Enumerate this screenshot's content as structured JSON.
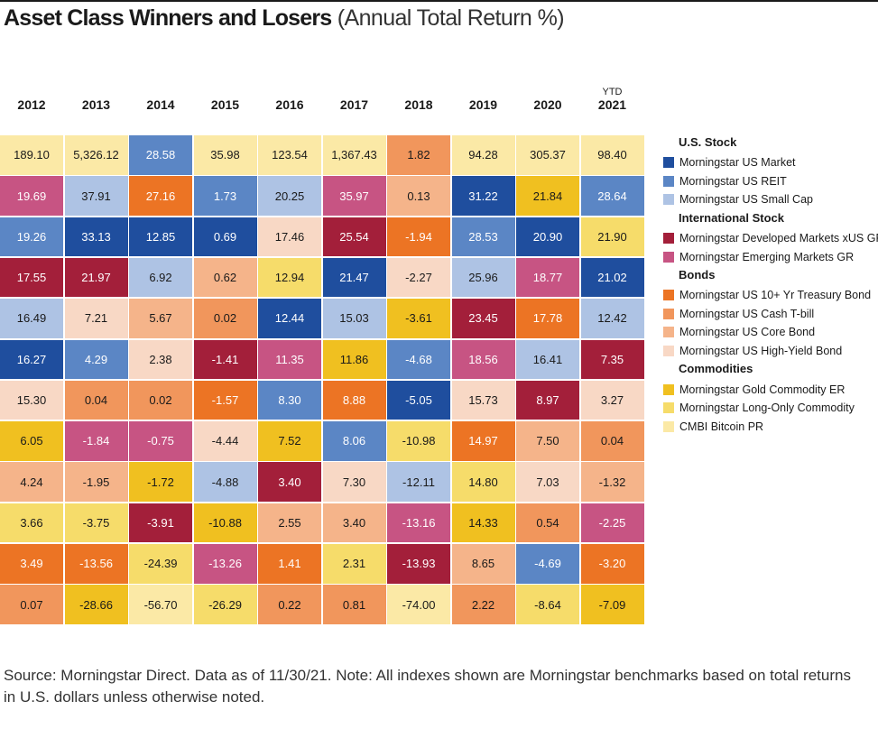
{
  "title": "Asset Class Winners and Losers",
  "subtitle": "(Annual Total Return %)",
  "chart_data": {
    "type": "table",
    "title": "Asset Class Winners and Losers (Annual Total Return %)",
    "columns": [
      {
        "ytd": "",
        "year": "2012"
      },
      {
        "ytd": "",
        "year": "2013"
      },
      {
        "ytd": "",
        "year": "2014"
      },
      {
        "ytd": "",
        "year": "2015"
      },
      {
        "ytd": "",
        "year": "2016"
      },
      {
        "ytd": "",
        "year": "2017"
      },
      {
        "ytd": "",
        "year": "2018"
      },
      {
        "ytd": "",
        "year": "2019"
      },
      {
        "ytd": "",
        "year": "2020"
      },
      {
        "ytd": "YTD",
        "year": "2021"
      }
    ],
    "asset_colors": {
      "us_market": "#1f4e9e",
      "us_reit": "#5b86c5",
      "us_small_cap": "#aec3e4",
      "developed": "#a31f3a",
      "emerging": "#c75483",
      "treasury": "#ec7424",
      "cash": "#f1965c",
      "core_bond": "#f5b48a",
      "high_yield": "#f8d8c5",
      "gold": "#f0c020",
      "long_only": "#f6dc6a",
      "bitcoin": "#fbe9a6"
    },
    "cells": [
      [
        {
          "value": "189.10",
          "asset": "bitcoin"
        },
        {
          "value": "19.69",
          "asset": "emerging"
        },
        {
          "value": "19.26",
          "asset": "us_reit"
        },
        {
          "value": "17.55",
          "asset": "developed"
        },
        {
          "value": "16.49",
          "asset": "us_small_cap"
        },
        {
          "value": "16.27",
          "asset": "us_market"
        },
        {
          "value": "15.30",
          "asset": "high_yield"
        },
        {
          "value": "6.05",
          "asset": "gold"
        },
        {
          "value": "4.24",
          "asset": "core_bond"
        },
        {
          "value": "3.66",
          "asset": "long_only"
        },
        {
          "value": "3.49",
          "asset": "treasury"
        },
        {
          "value": "0.07",
          "asset": "cash"
        }
      ],
      [
        {
          "value": "5,326.12",
          "asset": "bitcoin"
        },
        {
          "value": "37.91",
          "asset": "us_small_cap"
        },
        {
          "value": "33.13",
          "asset": "us_market"
        },
        {
          "value": "21.97",
          "asset": "developed"
        },
        {
          "value": "7.21",
          "asset": "high_yield"
        },
        {
          "value": "4.29",
          "asset": "us_reit"
        },
        {
          "value": "0.04",
          "asset": "cash"
        },
        {
          "value": "-1.84",
          "asset": "emerging"
        },
        {
          "value": "-1.95",
          "asset": "core_bond"
        },
        {
          "value": "-3.75",
          "asset": "long_only"
        },
        {
          "value": "-13.56",
          "asset": "treasury"
        },
        {
          "value": "-28.66",
          "asset": "gold"
        }
      ],
      [
        {
          "value": "28.58",
          "asset": "us_reit"
        },
        {
          "value": "27.16",
          "asset": "treasury"
        },
        {
          "value": "12.85",
          "asset": "us_market"
        },
        {
          "value": "6.92",
          "asset": "us_small_cap"
        },
        {
          "value": "5.67",
          "asset": "core_bond"
        },
        {
          "value": "2.38",
          "asset": "high_yield"
        },
        {
          "value": "0.02",
          "asset": "cash"
        },
        {
          "value": "-0.75",
          "asset": "emerging"
        },
        {
          "value": "-1.72",
          "asset": "gold"
        },
        {
          "value": "-3.91",
          "asset": "developed"
        },
        {
          "value": "-24.39",
          "asset": "long_only"
        },
        {
          "value": "-56.70",
          "asset": "bitcoin"
        }
      ],
      [
        {
          "value": "35.98",
          "asset": "bitcoin"
        },
        {
          "value": "1.73",
          "asset": "us_reit"
        },
        {
          "value": "0.69",
          "asset": "us_market"
        },
        {
          "value": "0.62",
          "asset": "core_bond"
        },
        {
          "value": "0.02",
          "asset": "cash"
        },
        {
          "value": "-1.41",
          "asset": "developed"
        },
        {
          "value": "-1.57",
          "asset": "treasury"
        },
        {
          "value": "-4.44",
          "asset": "high_yield"
        },
        {
          "value": "-4.88",
          "asset": "us_small_cap"
        },
        {
          "value": "-10.88",
          "asset": "gold"
        },
        {
          "value": "-13.26",
          "asset": "emerging"
        },
        {
          "value": "-26.29",
          "asset": "long_only"
        }
      ],
      [
        {
          "value": "123.54",
          "asset": "bitcoin"
        },
        {
          "value": "20.25",
          "asset": "us_small_cap"
        },
        {
          "value": "17.46",
          "asset": "high_yield"
        },
        {
          "value": "12.94",
          "asset": "long_only"
        },
        {
          "value": "12.44",
          "asset": "us_market"
        },
        {
          "value": "11.35",
          "asset": "emerging"
        },
        {
          "value": "8.30",
          "asset": "us_reit"
        },
        {
          "value": "7.52",
          "asset": "gold"
        },
        {
          "value": "3.40",
          "asset": "developed"
        },
        {
          "value": "2.55",
          "asset": "core_bond"
        },
        {
          "value": "1.41",
          "asset": "treasury"
        },
        {
          "value": "0.22",
          "asset": "cash"
        }
      ],
      [
        {
          "value": "1,367.43",
          "asset": "bitcoin"
        },
        {
          "value": "35.97",
          "asset": "emerging"
        },
        {
          "value": "25.54",
          "asset": "developed"
        },
        {
          "value": "21.47",
          "asset": "us_market"
        },
        {
          "value": "15.03",
          "asset": "us_small_cap"
        },
        {
          "value": "11.86",
          "asset": "gold"
        },
        {
          "value": "8.88",
          "asset": "treasury"
        },
        {
          "value": "8.06",
          "asset": "us_reit"
        },
        {
          "value": "7.30",
          "asset": "high_yield"
        },
        {
          "value": "3.40",
          "asset": "core_bond"
        },
        {
          "value": "2.31",
          "asset": "long_only"
        },
        {
          "value": "0.81",
          "asset": "cash"
        }
      ],
      [
        {
          "value": "1.82",
          "asset": "cash"
        },
        {
          "value": "0.13",
          "asset": "core_bond"
        },
        {
          "value": "-1.94",
          "asset": "treasury"
        },
        {
          "value": "-2.27",
          "asset": "high_yield"
        },
        {
          "value": "-3.61",
          "asset": "gold"
        },
        {
          "value": "-4.68",
          "asset": "us_reit"
        },
        {
          "value": "-5.05",
          "asset": "us_market"
        },
        {
          "value": "-10.98",
          "asset": "long_only"
        },
        {
          "value": "-12.11",
          "asset": "us_small_cap"
        },
        {
          "value": "-13.16",
          "asset": "emerging"
        },
        {
          "value": "-13.93",
          "asset": "developed"
        },
        {
          "value": "-74.00",
          "asset": "bitcoin"
        }
      ],
      [
        {
          "value": "94.28",
          "asset": "bitcoin"
        },
        {
          "value": "31.22",
          "asset": "us_market"
        },
        {
          "value": "28.53",
          "asset": "us_reit"
        },
        {
          "value": "25.96",
          "asset": "us_small_cap"
        },
        {
          "value": "23.45",
          "asset": "developed"
        },
        {
          "value": "18.56",
          "asset": "emerging"
        },
        {
          "value": "15.73",
          "asset": "high_yield"
        },
        {
          "value": "14.97",
          "asset": "treasury"
        },
        {
          "value": "14.80",
          "asset": "long_only"
        },
        {
          "value": "14.33",
          "asset": "gold"
        },
        {
          "value": "8.65",
          "asset": "core_bond"
        },
        {
          "value": "2.22",
          "asset": "cash"
        }
      ],
      [
        {
          "value": "305.37",
          "asset": "bitcoin"
        },
        {
          "value": "21.84",
          "asset": "gold"
        },
        {
          "value": "20.90",
          "asset": "us_market"
        },
        {
          "value": "18.77",
          "asset": "emerging"
        },
        {
          "value": "17.78",
          "asset": "treasury"
        },
        {
          "value": "16.41",
          "asset": "us_small_cap"
        },
        {
          "value": "8.97",
          "asset": "developed"
        },
        {
          "value": "7.50",
          "asset": "core_bond"
        },
        {
          "value": "7.03",
          "asset": "high_yield"
        },
        {
          "value": "0.54",
          "asset": "cash"
        },
        {
          "value": "-4.69",
          "asset": "us_reit"
        },
        {
          "value": "-8.64",
          "asset": "long_only"
        }
      ],
      [
        {
          "value": "98.40",
          "asset": "bitcoin"
        },
        {
          "value": "28.64",
          "asset": "us_reit"
        },
        {
          "value": "21.90",
          "asset": "long_only"
        },
        {
          "value": "21.02",
          "asset": "us_market"
        },
        {
          "value": "12.42",
          "asset": "us_small_cap"
        },
        {
          "value": "7.35",
          "asset": "developed"
        },
        {
          "value": "3.27",
          "asset": "high_yield"
        },
        {
          "value": "0.04",
          "asset": "cash"
        },
        {
          "value": "-1.32",
          "asset": "core_bond"
        },
        {
          "value": "-2.25",
          "asset": "emerging"
        },
        {
          "value": "-3.20",
          "asset": "treasury"
        },
        {
          "value": "-7.09",
          "asset": "gold"
        }
      ]
    ],
    "legend": [
      {
        "group": "U.S. Stock",
        "items": [
          {
            "key": "us_market",
            "label": "Morningstar US Market"
          },
          {
            "key": "us_reit",
            "label": "Morningstar US REIT"
          },
          {
            "key": "us_small_cap",
            "label": "Morningstar US Small Cap"
          }
        ]
      },
      {
        "group": "International Stock",
        "items": [
          {
            "key": "developed",
            "label": "Morningstar Developed Markets xUS GR"
          },
          {
            "key": "emerging",
            "label": "Morningstar Emerging Markets GR"
          }
        ]
      },
      {
        "group": "Bonds",
        "items": [
          {
            "key": "treasury",
            "label": "Morningstar US 10+ Yr Treasury Bond"
          },
          {
            "key": "cash",
            "label": "Morningstar US Cash T-bill"
          },
          {
            "key": "core_bond",
            "label": "Morningstar US Core Bond"
          },
          {
            "key": "high_yield",
            "label": "Morningstar US High-Yield Bond"
          }
        ]
      },
      {
        "group": "Commodities",
        "items": [
          {
            "key": "gold",
            "label": "Morningstar Gold Commodity ER"
          },
          {
            "key": "long_only",
            "label": "Morningstar Long-Only Commodity"
          },
          {
            "key": "bitcoin",
            "label": "CMBI Bitcoin PR"
          }
        ]
      }
    ]
  },
  "footnote": "Source: Morningstar Direct. Data as of 11/30/21. Note: All indexes shown are Morningstar benchmarks based on total returns in U.S. dollars unless otherwise noted."
}
